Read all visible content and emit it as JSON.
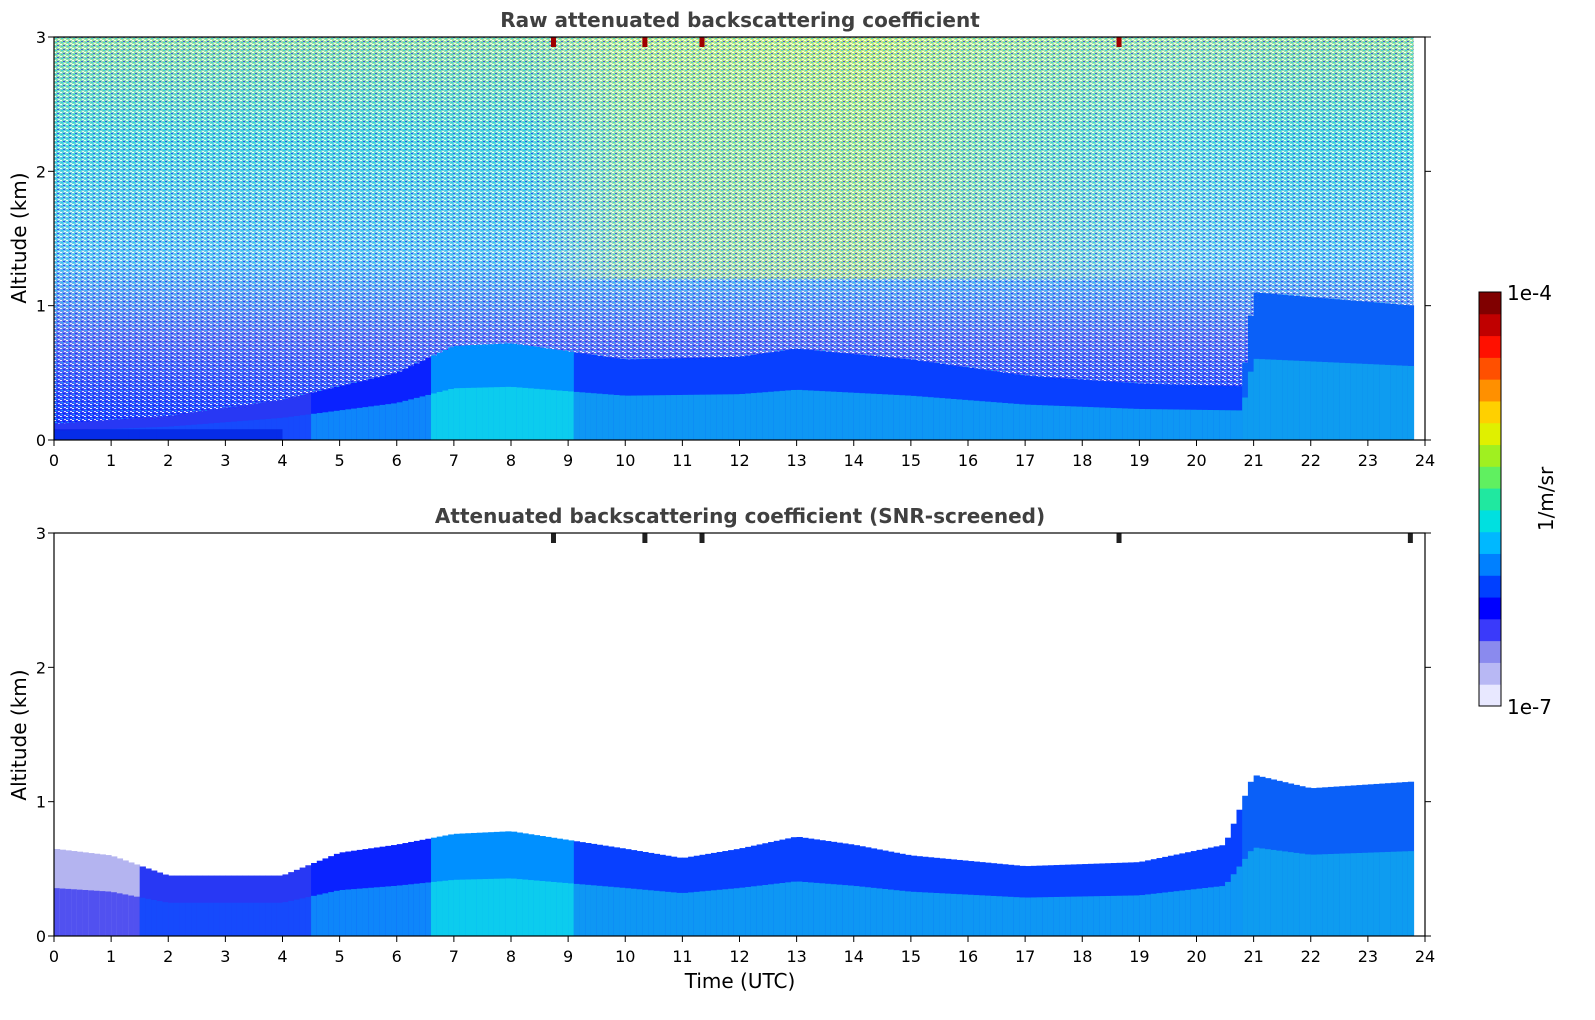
{
  "chart_data": [
    {
      "type": "heatmap",
      "title": "Raw attenuated backscattering coefficient",
      "ylabel": "Altitude (km)",
      "xlabel": "",
      "xlim": [
        0,
        24
      ],
      "ylim": [
        0,
        3
      ],
      "x_ticks": [
        "0",
        "1",
        "2",
        "3",
        "4",
        "5",
        "6",
        "7",
        "8",
        "9",
        "10",
        "11",
        "12",
        "13",
        "14",
        "15",
        "16",
        "17",
        "18",
        "19",
        "20",
        "21",
        "22",
        "23",
        "24"
      ],
      "y_ticks": [
        "0",
        "1",
        "2",
        "3"
      ],
      "grid": false,
      "boundary_layer_top_km": [
        {
          "x": 0,
          "y": 0.12
        },
        {
          "x": 2,
          "y": 0.18
        },
        {
          "x": 4,
          "y": 0.3
        },
        {
          "x": 6,
          "y": 0.5
        },
        {
          "x": 7,
          "y": 0.7
        },
        {
          "x": 8,
          "y": 0.72
        },
        {
          "x": 10,
          "y": 0.6
        },
        {
          "x": 12,
          "y": 0.62
        },
        {
          "x": 13,
          "y": 0.68
        },
        {
          "x": 15,
          "y": 0.6
        },
        {
          "x": 17,
          "y": 0.48
        },
        {
          "x": 19,
          "y": 0.42
        },
        {
          "x": 20.8,
          "y": 0.4
        },
        {
          "x": 21,
          "y": 1.1
        },
        {
          "x": 23.8,
          "y": 1.0
        }
      ],
      "saturated_spikes_time_utc": [
        8.7,
        10.3,
        11.3,
        18.6
      ]
    },
    {
      "type": "heatmap",
      "title": "Attenuated backscattering coefficient (SNR-screened)",
      "ylabel": "Altitude (km)",
      "xlabel": "Time (UTC)",
      "xlim": [
        0,
        24
      ],
      "ylim": [
        0,
        3
      ],
      "x_ticks": [
        "0",
        "1",
        "2",
        "3",
        "4",
        "5",
        "6",
        "7",
        "8",
        "9",
        "10",
        "11",
        "12",
        "13",
        "14",
        "15",
        "16",
        "17",
        "18",
        "19",
        "20",
        "21",
        "22",
        "23",
        "24"
      ],
      "y_ticks": [
        "0",
        "1",
        "2",
        "3"
      ],
      "grid": false,
      "signal_top_km": [
        {
          "x": 0,
          "y": 0.65
        },
        {
          "x": 1,
          "y": 0.6
        },
        {
          "x": 2,
          "y": 0.45
        },
        {
          "x": 4,
          "y": 0.45
        },
        {
          "x": 5,
          "y": 0.62
        },
        {
          "x": 6,
          "y": 0.68
        },
        {
          "x": 7,
          "y": 0.76
        },
        {
          "x": 8,
          "y": 0.78
        },
        {
          "x": 10,
          "y": 0.65
        },
        {
          "x": 11,
          "y": 0.58
        },
        {
          "x": 12,
          "y": 0.65
        },
        {
          "x": 13,
          "y": 0.74
        },
        {
          "x": 14,
          "y": 0.68
        },
        {
          "x": 15,
          "y": 0.6
        },
        {
          "x": 17,
          "y": 0.52
        },
        {
          "x": 19,
          "y": 0.55
        },
        {
          "x": 20.5,
          "y": 0.68
        },
        {
          "x": 21,
          "y": 1.2
        },
        {
          "x": 22,
          "y": 1.1
        },
        {
          "x": 23.8,
          "y": 1.15
        }
      ],
      "saturated_spikes_time_utc": [
        8.7,
        10.3,
        11.3,
        18.6,
        23.7
      ]
    }
  ],
  "colorbar": {
    "label": "1/m/sr",
    "max_label": "1e-4",
    "min_label": "1e-7",
    "colors": [
      "#e8e8ff",
      "#b8b8f4",
      "#8a8aee",
      "#3a3afa",
      "#0000ff",
      "#0040ff",
      "#0080ff",
      "#00b8ff",
      "#00e0e0",
      "#20e8a0",
      "#60f060",
      "#a0f020",
      "#e0f000",
      "#ffd000",
      "#ff9000",
      "#ff5000",
      "#ff1000",
      "#c00000",
      "#800000"
    ]
  }
}
